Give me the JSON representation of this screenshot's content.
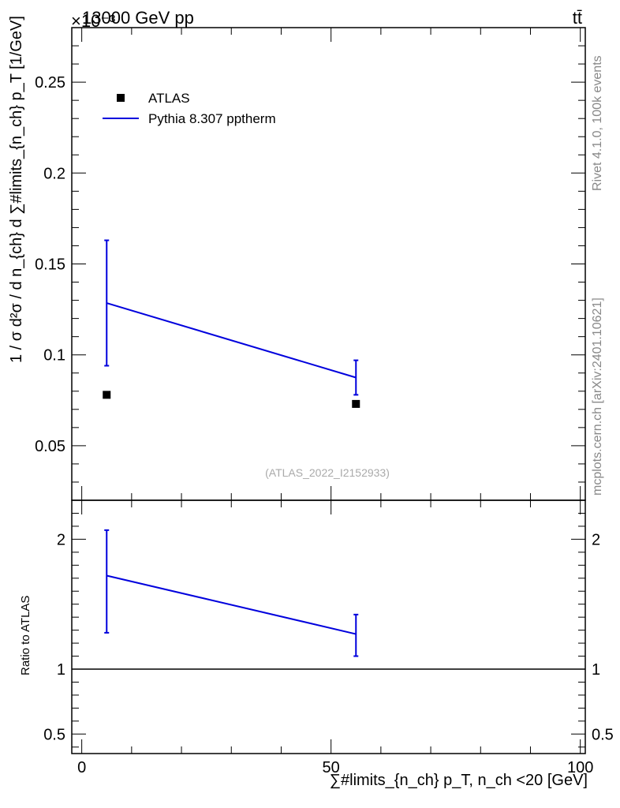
{
  "header": {
    "energy_label": "13000 GeV pp",
    "process_label": "tt̄",
    "exponent_label": "×10⁻³"
  },
  "side_labels": {
    "rivet": "Rivet 4.1.0,  100k events",
    "mcplots": "mcplots.cern.ch [arXiv:2401.10621]"
  },
  "analysis_label": "(ATLAS_2022_I2152933)",
  "chart_data": [
    {
      "type": "line",
      "panel": "main",
      "ylabel": "1 / σ d²σ / d n_{ch} d ∑#limits_{n_ch} p_T [1/GeV]",
      "xlim": [
        -2,
        101
      ],
      "ylim": [
        0.02,
        0.28
      ],
      "yticks": [
        "0.05",
        "0.1",
        "0.15",
        "0.2",
        "0.25"
      ],
      "ytick_values": [
        0.05,
        0.1,
        0.15,
        0.2,
        0.25
      ],
      "legend": [
        {
          "label": "ATLAS",
          "marker": "square",
          "color": "#000000"
        },
        {
          "label": "Pythia 8.307 pptherm",
          "marker": "line",
          "color": "#0000dd"
        }
      ],
      "series": [
        {
          "name": "ATLAS",
          "style": "markers",
          "color": "#000000",
          "x": [
            5,
            55
          ],
          "y": [
            0.078,
            0.073
          ]
        },
        {
          "name": "Pythia 8.307 pptherm",
          "style": "line",
          "color": "#0000dd",
          "x": [
            5,
            55
          ],
          "y": [
            0.1285,
            0.0875
          ],
          "err_low": [
            0.094,
            0.078
          ],
          "err_high": [
            0.163,
            0.097
          ]
        }
      ]
    },
    {
      "type": "line",
      "panel": "ratio",
      "ylabel": "Ratio to ATLAS",
      "xlabel": "∑#limits_{n_ch} p_T, n_ch <20 [GeV]",
      "xlim": [
        -2,
        101
      ],
      "ylim": [
        0.35,
        2.3
      ],
      "xticks": [
        "0",
        "50",
        "100"
      ],
      "xtick_values": [
        0,
        50,
        100
      ],
      "yticks": [
        "0.5",
        "1",
        "2"
      ],
      "ytick_values": [
        0.5,
        1,
        2
      ],
      "reference": 1,
      "series": [
        {
          "name": "Pythia 8.307 pptherm",
          "style": "line",
          "color": "#0000dd",
          "x": [
            5,
            55
          ],
          "y": [
            1.72,
            1.27
          ],
          "err_low": [
            1.28,
            1.1
          ],
          "err_high": [
            2.07,
            1.42
          ]
        }
      ]
    }
  ]
}
